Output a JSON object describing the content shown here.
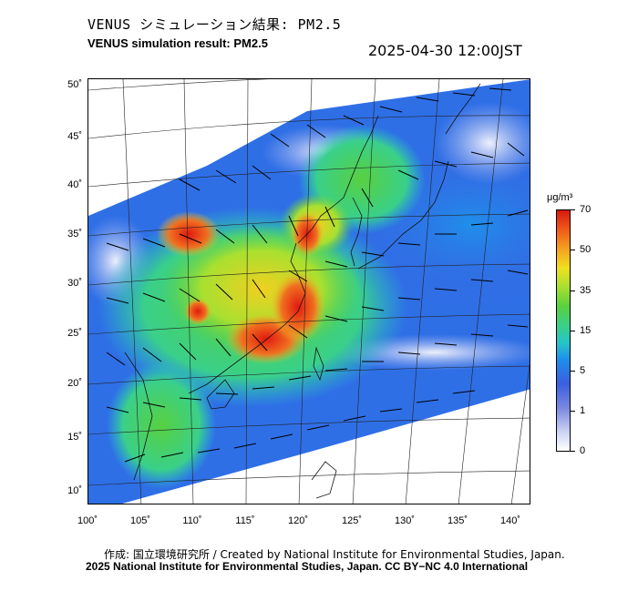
{
  "header": {
    "title_jp": "VENUS シミュレーション結果: PM2.5",
    "title_en": "VENUS simulation result: PM2.5",
    "timestamp": "2025-04-30 12:00JST"
  },
  "map": {
    "lat_labels": [
      "50˚",
      "45˚",
      "40˚",
      "35˚",
      "30˚",
      "25˚",
      "20˚",
      "15˚",
      "10˚"
    ],
    "lon_labels": [
      "100˚",
      "105˚",
      "110˚",
      "115˚",
      "120˚",
      "125˚",
      "130˚",
      "135˚",
      "140˚"
    ]
  },
  "colorbar": {
    "unit": "μg/m³",
    "labels": [
      "70",
      "50",
      "35",
      "15",
      "5",
      "1",
      "0"
    ],
    "colors": {
      "low": "#ffffff",
      "blue": "#3a5fe0",
      "cyan": "#26c5c8",
      "green": "#58d040",
      "yellow": "#f0e020",
      "orange": "#f5a020",
      "red": "#d81810"
    }
  },
  "footer": {
    "credit": "作成: 国立環境研究所 / Created by National Institute for Environmental Studies, Japan.",
    "license": "2025 National Institute for Environmental Studies, Japan. CC BY−NC 4.0 International"
  }
}
